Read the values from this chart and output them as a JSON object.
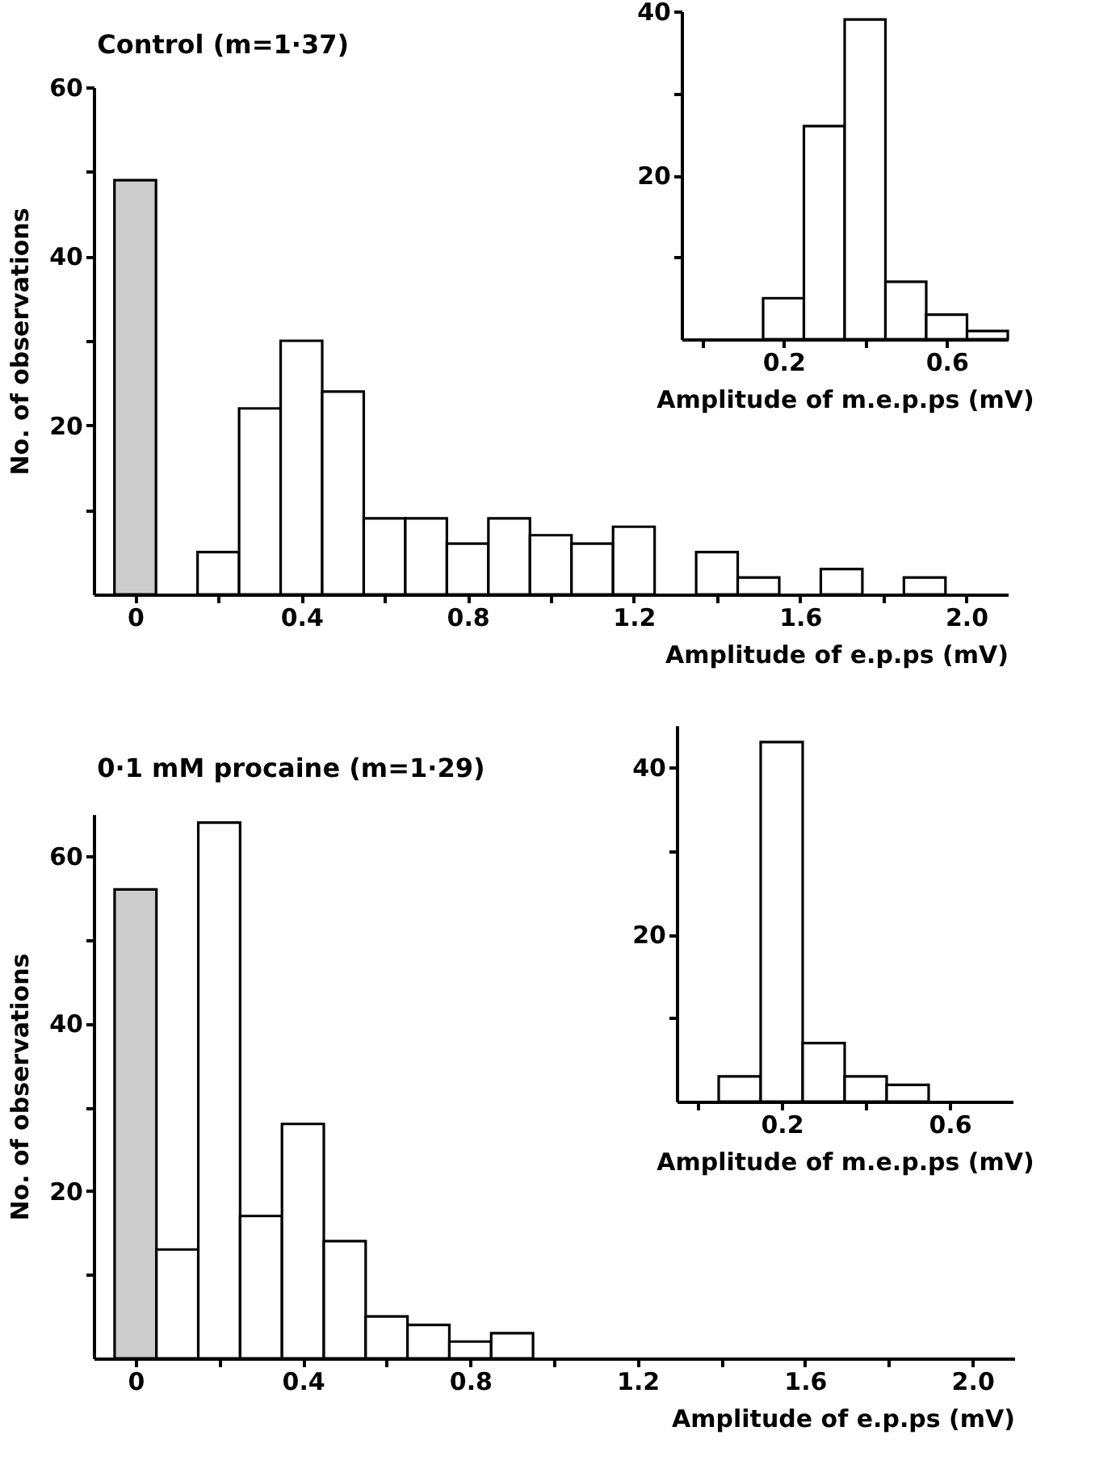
{
  "chart_data": [
    {
      "type": "histogram",
      "title": "Control (m=1·37)",
      "xlabel": "Amplitude of e.p.ps (mV)",
      "ylabel": "No. of observations",
      "bins": [
        -0.05,
        0.05,
        0.15,
        0.25,
        0.35,
        0.45,
        0.55,
        0.65,
        0.75,
        0.85,
        0.95,
        1.05,
        1.15,
        1.25,
        1.35,
        1.45,
        1.55,
        1.65,
        1.75,
        1.85,
        1.95
      ],
      "values": [
        49,
        0,
        5,
        22,
        30,
        24,
        9,
        9,
        6,
        9,
        7,
        6,
        8,
        0,
        5,
        2,
        0,
        3,
        0,
        2
      ],
      "colors": [
        "#cccccc",
        "#ffffff",
        "#ffffff",
        "#ffffff",
        "#ffffff",
        "#ffffff",
        "#ffffff",
        "#ffffff",
        "#ffffff",
        "#ffffff",
        "#ffffff",
        "#ffffff",
        "#ffffff",
        "#ffffff",
        "#ffffff",
        "#ffffff",
        "#ffffff",
        "#ffffff",
        "#ffffff",
        "#ffffff"
      ],
      "xlim": [
        -0.1,
        2.1
      ],
      "ylim": [
        0,
        60
      ],
      "xticks": [
        0,
        {
          "value": 0.2,
          "label": null
        },
        0.4,
        {
          "value": 0.6,
          "label": null
        },
        0.8,
        {
          "value": 1.0,
          "label": null
        },
        1.2,
        {
          "value": 1.4,
          "label": null
        },
        1.6,
        {
          "value": 1.8,
          "label": null
        },
        {
          "value": 2.0,
          "label": "2.0"
        }
      ],
      "yticks": [
        {
          "value": 10,
          "label": null
        },
        20,
        {
          "value": 30,
          "label": null
        },
        40,
        {
          "value": 50,
          "label": null
        },
        60
      ]
    },
    {
      "type": "histogram",
      "xlabel": "Amplitude of m.e.p.ps (mV)",
      "bins": [
        0.15,
        0.25,
        0.35,
        0.45,
        0.55,
        0.65,
        0.75
      ],
      "values": [
        5,
        26,
        39,
        7,
        3,
        1
      ],
      "colors": [
        "#ffffff",
        "#ffffff",
        "#ffffff",
        "#ffffff",
        "#ffffff",
        "#ffffff"
      ],
      "xlim": [
        -0.05,
        0.75
      ],
      "ylim": [
        0,
        40
      ],
      "xticks": [
        {
          "value": 0,
          "label": null
        },
        0.2,
        {
          "value": 0.4,
          "label": null
        },
        0.6
      ],
      "yticks": [
        {
          "value": 10,
          "label": null
        },
        20,
        {
          "value": 30,
          "label": null
        },
        40
      ]
    },
    {
      "type": "histogram",
      "title": "0·1 mM procaine (m=1·29)",
      "xlabel": "Amplitude of e.p.ps (mV)",
      "ylabel": "No. of observations",
      "bins": [
        -0.05,
        0.05,
        0.15,
        0.25,
        0.35,
        0.45,
        0.55,
        0.65,
        0.75,
        0.85,
        0.95
      ],
      "values": [
        56,
        13,
        64,
        17,
        28,
        14,
        5,
        4,
        2,
        3
      ],
      "colors": [
        "#cccccc",
        "#ffffff",
        "#ffffff",
        "#ffffff",
        "#ffffff",
        "#ffffff",
        "#ffffff",
        "#ffffff",
        "#ffffff",
        "#ffffff"
      ],
      "xlim": [
        -0.1,
        2.1
      ],
      "ylim": [
        0,
        65
      ],
      "xticks": [
        0,
        {
          "value": 0.2,
          "label": null
        },
        0.4,
        {
          "value": 0.6,
          "label": null
        },
        0.8,
        {
          "value": 1.0,
          "label": null
        },
        1.2,
        {
          "value": 1.4,
          "label": null
        },
        1.6,
        {
          "value": 1.8,
          "label": null
        },
        {
          "value": 2.0,
          "label": "2.0"
        }
      ],
      "yticks": [
        {
          "value": 10,
          "label": null
        },
        20,
        {
          "value": 30,
          "label": null
        },
        40,
        {
          "value": 50,
          "label": null
        },
        60
      ]
    },
    {
      "type": "histogram",
      "xlabel": "Amplitude of m.e.p.ps (mV)",
      "bins": [
        0.05,
        0.15,
        0.25,
        0.35,
        0.45,
        0.55
      ],
      "values": [
        3,
        43,
        7,
        3,
        2
      ],
      "colors": [
        "#ffffff",
        "#ffffff",
        "#ffffff",
        "#ffffff",
        "#ffffff"
      ],
      "xlim": [
        -0.05,
        0.75
      ],
      "ylim": [
        0,
        45
      ],
      "xticks": [
        {
          "value": 0,
          "label": null
        },
        0.2,
        {
          "value": 0.4,
          "label": null
        },
        0.6
      ],
      "yticks": [
        {
          "value": 10,
          "label": null
        },
        20,
        {
          "value": 30,
          "label": null
        },
        40
      ]
    }
  ]
}
